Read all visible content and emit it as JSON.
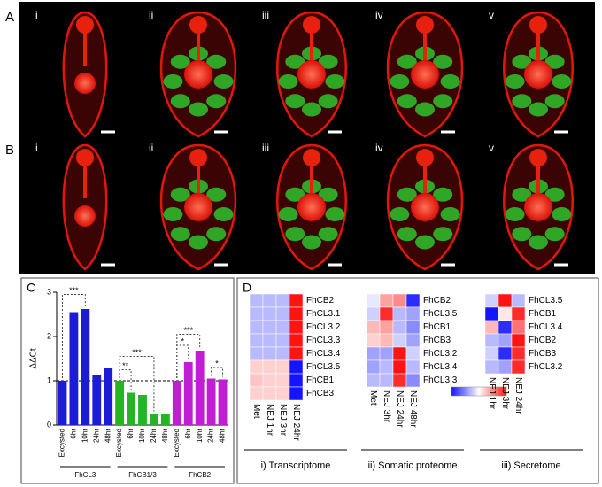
{
  "panel_a_b": {
    "row_labels": [
      "A",
      "B"
    ],
    "column_labels": [
      "i",
      "ii",
      "iii",
      "iv",
      "v"
    ]
  },
  "chart_data": [
    {
      "type": "bar",
      "panel_label": "C",
      "ylabel": "ΔΔCt",
      "ylim": [
        0,
        3
      ],
      "yticks": [
        0,
        1,
        2,
        3
      ],
      "hline": 1,
      "groups": [
        {
          "name": "FhCL3",
          "color": "#1c1cd8",
          "categories": [
            "Excysted",
            "6hr",
            "10hr",
            "24hr",
            "48hr"
          ],
          "values": [
            1.0,
            2.55,
            2.62,
            1.12,
            1.28
          ]
        },
        {
          "name": "FhCB1/3",
          "color": "#24b424",
          "categories": [
            "Excysted",
            "6hr",
            "10hr",
            "24hr",
            "48hr"
          ],
          "values": [
            1.0,
            0.73,
            0.68,
            0.25,
            0.25
          ]
        },
        {
          "name": "FhCB2",
          "color": "#c01ed2",
          "categories": [
            "Excysted",
            "6hr",
            "10hr",
            "24hr",
            "48hr"
          ],
          "values": [
            1.0,
            1.42,
            1.68,
            1.05,
            1.03
          ]
        }
      ],
      "annotations": [
        "***",
        "***",
        "**",
        "***",
        "*",
        "*"
      ]
    },
    {
      "type": "heatmap",
      "panel_label": "D",
      "caption": "i) Transcriptome",
      "colormap": [
        "#1414ff",
        "#ffffff",
        "#ff1414"
      ],
      "vlim": [
        -1,
        1
      ],
      "columns": [
        "Met",
        "NEJ 1hr",
        "NEJ 3hr",
        "NEJ 24hr"
      ],
      "rows": [
        "FhCB2",
        "FhCL3.1",
        "FhCL3.2",
        "FhCL3.3",
        "FhCL3.4",
        "FhCL3.5",
        "FhCB1",
        "FhCB3"
      ],
      "values": [
        [
          -0.3,
          -0.3,
          -0.3,
          1.0
        ],
        [
          -0.3,
          -0.3,
          -0.3,
          1.0
        ],
        [
          -0.3,
          -0.3,
          -0.3,
          1.0
        ],
        [
          -0.3,
          -0.3,
          -0.3,
          1.0
        ],
        [
          -0.3,
          -0.3,
          -0.3,
          1.0
        ],
        [
          0.2,
          0.2,
          0.2,
          -1.0
        ],
        [
          0.25,
          0.2,
          0.2,
          -1.0
        ],
        [
          0.2,
          0.2,
          0.2,
          -1.0
        ]
      ]
    },
    {
      "type": "heatmap",
      "caption": "ii) Somatic proteome",
      "colormap": [
        "#1414ff",
        "#ffffff",
        "#ff1414"
      ],
      "vlim": [
        -1,
        1
      ],
      "colorbar": true,
      "columns": [
        "Met",
        "NEJ 3hr",
        "NEJ 24hr",
        "NEJ 48hr"
      ],
      "rows": [
        "FhCB2",
        "FhCL3.5",
        "FhCB1",
        "FhCB3",
        "FhCL3.2",
        "FhCL3.4",
        "FhCL3.3"
      ],
      "values": [
        [
          -0.1,
          0.4,
          0.5,
          -0.9
        ],
        [
          -0.2,
          0.9,
          -0.3,
          -0.4
        ],
        [
          0.3,
          0.4,
          -0.3,
          -0.5
        ],
        [
          0.2,
          0.3,
          -0.2,
          -0.4
        ],
        [
          -0.4,
          -0.4,
          1.0,
          -0.2
        ],
        [
          -0.4,
          -0.3,
          1.0,
          -0.3
        ],
        [
          -0.3,
          -0.3,
          0.9,
          -0.5
        ]
      ]
    },
    {
      "type": "heatmap",
      "caption": "iii) Secretome",
      "colormap": [
        "#1414ff",
        "#ffffff",
        "#ff1414"
      ],
      "vlim": [
        -1,
        1
      ],
      "columns": [
        "NEJ 1hr",
        "NEJ 3hr",
        "NEJ 24hr"
      ],
      "rows": [
        "FhCL3.5",
        "FhCB1",
        "FhCL3.4",
        "FhCB2",
        "FhCB3",
        "FhCL3.2"
      ],
      "values": [
        [
          -0.2,
          1.0,
          -0.3
        ],
        [
          -1.0,
          0.1,
          0.9
        ],
        [
          0.3,
          -0.9,
          0.6
        ],
        [
          -0.3,
          -0.4,
          1.0
        ],
        [
          -0.2,
          -0.9,
          0.9
        ],
        [
          -0.3,
          -0.4,
          0.9
        ]
      ]
    }
  ]
}
